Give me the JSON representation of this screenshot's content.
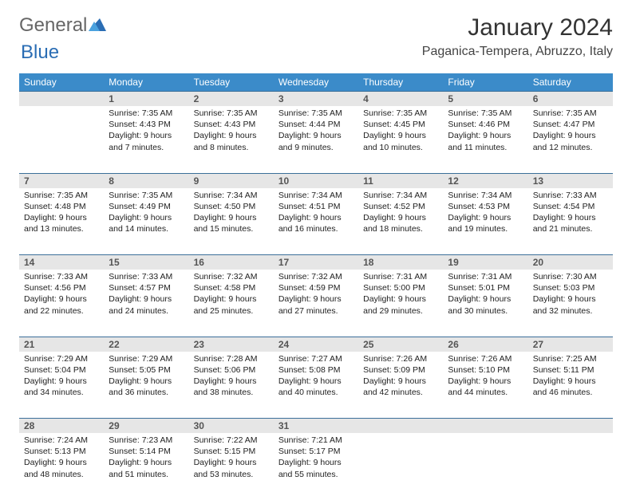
{
  "logo": {
    "part1": "General",
    "part2": "Blue"
  },
  "title": "January 2024",
  "location": "Paganica-Tempera, Abruzzo, Italy",
  "colors": {
    "header_bg": "#3b8bc9",
    "header_text": "#ffffff",
    "daynum_bg": "#e6e6e6",
    "row_border": "#3b6f99",
    "logo_gray": "#666666",
    "logo_blue": "#2a6db4"
  },
  "day_headers": [
    "Sunday",
    "Monday",
    "Tuesday",
    "Wednesday",
    "Thursday",
    "Friday",
    "Saturday"
  ],
  "weeks": [
    [
      null,
      {
        "n": "1",
        "sunrise": "Sunrise: 7:35 AM",
        "sunset": "Sunset: 4:43 PM",
        "day1": "Daylight: 9 hours",
        "day2": "and 7 minutes."
      },
      {
        "n": "2",
        "sunrise": "Sunrise: 7:35 AM",
        "sunset": "Sunset: 4:43 PM",
        "day1": "Daylight: 9 hours",
        "day2": "and 8 minutes."
      },
      {
        "n": "3",
        "sunrise": "Sunrise: 7:35 AM",
        "sunset": "Sunset: 4:44 PM",
        "day1": "Daylight: 9 hours",
        "day2": "and 9 minutes."
      },
      {
        "n": "4",
        "sunrise": "Sunrise: 7:35 AM",
        "sunset": "Sunset: 4:45 PM",
        "day1": "Daylight: 9 hours",
        "day2": "and 10 minutes."
      },
      {
        "n": "5",
        "sunrise": "Sunrise: 7:35 AM",
        "sunset": "Sunset: 4:46 PM",
        "day1": "Daylight: 9 hours",
        "day2": "and 11 minutes."
      },
      {
        "n": "6",
        "sunrise": "Sunrise: 7:35 AM",
        "sunset": "Sunset: 4:47 PM",
        "day1": "Daylight: 9 hours",
        "day2": "and 12 minutes."
      }
    ],
    [
      {
        "n": "7",
        "sunrise": "Sunrise: 7:35 AM",
        "sunset": "Sunset: 4:48 PM",
        "day1": "Daylight: 9 hours",
        "day2": "and 13 minutes."
      },
      {
        "n": "8",
        "sunrise": "Sunrise: 7:35 AM",
        "sunset": "Sunset: 4:49 PM",
        "day1": "Daylight: 9 hours",
        "day2": "and 14 minutes."
      },
      {
        "n": "9",
        "sunrise": "Sunrise: 7:34 AM",
        "sunset": "Sunset: 4:50 PM",
        "day1": "Daylight: 9 hours",
        "day2": "and 15 minutes."
      },
      {
        "n": "10",
        "sunrise": "Sunrise: 7:34 AM",
        "sunset": "Sunset: 4:51 PM",
        "day1": "Daylight: 9 hours",
        "day2": "and 16 minutes."
      },
      {
        "n": "11",
        "sunrise": "Sunrise: 7:34 AM",
        "sunset": "Sunset: 4:52 PM",
        "day1": "Daylight: 9 hours",
        "day2": "and 18 minutes."
      },
      {
        "n": "12",
        "sunrise": "Sunrise: 7:34 AM",
        "sunset": "Sunset: 4:53 PM",
        "day1": "Daylight: 9 hours",
        "day2": "and 19 minutes."
      },
      {
        "n": "13",
        "sunrise": "Sunrise: 7:33 AM",
        "sunset": "Sunset: 4:54 PM",
        "day1": "Daylight: 9 hours",
        "day2": "and 21 minutes."
      }
    ],
    [
      {
        "n": "14",
        "sunrise": "Sunrise: 7:33 AM",
        "sunset": "Sunset: 4:56 PM",
        "day1": "Daylight: 9 hours",
        "day2": "and 22 minutes."
      },
      {
        "n": "15",
        "sunrise": "Sunrise: 7:33 AM",
        "sunset": "Sunset: 4:57 PM",
        "day1": "Daylight: 9 hours",
        "day2": "and 24 minutes."
      },
      {
        "n": "16",
        "sunrise": "Sunrise: 7:32 AM",
        "sunset": "Sunset: 4:58 PM",
        "day1": "Daylight: 9 hours",
        "day2": "and 25 minutes."
      },
      {
        "n": "17",
        "sunrise": "Sunrise: 7:32 AM",
        "sunset": "Sunset: 4:59 PM",
        "day1": "Daylight: 9 hours",
        "day2": "and 27 minutes."
      },
      {
        "n": "18",
        "sunrise": "Sunrise: 7:31 AM",
        "sunset": "Sunset: 5:00 PM",
        "day1": "Daylight: 9 hours",
        "day2": "and 29 minutes."
      },
      {
        "n": "19",
        "sunrise": "Sunrise: 7:31 AM",
        "sunset": "Sunset: 5:01 PM",
        "day1": "Daylight: 9 hours",
        "day2": "and 30 minutes."
      },
      {
        "n": "20",
        "sunrise": "Sunrise: 7:30 AM",
        "sunset": "Sunset: 5:03 PM",
        "day1": "Daylight: 9 hours",
        "day2": "and 32 minutes."
      }
    ],
    [
      {
        "n": "21",
        "sunrise": "Sunrise: 7:29 AM",
        "sunset": "Sunset: 5:04 PM",
        "day1": "Daylight: 9 hours",
        "day2": "and 34 minutes."
      },
      {
        "n": "22",
        "sunrise": "Sunrise: 7:29 AM",
        "sunset": "Sunset: 5:05 PM",
        "day1": "Daylight: 9 hours",
        "day2": "and 36 minutes."
      },
      {
        "n": "23",
        "sunrise": "Sunrise: 7:28 AM",
        "sunset": "Sunset: 5:06 PM",
        "day1": "Daylight: 9 hours",
        "day2": "and 38 minutes."
      },
      {
        "n": "24",
        "sunrise": "Sunrise: 7:27 AM",
        "sunset": "Sunset: 5:08 PM",
        "day1": "Daylight: 9 hours",
        "day2": "and 40 minutes."
      },
      {
        "n": "25",
        "sunrise": "Sunrise: 7:26 AM",
        "sunset": "Sunset: 5:09 PM",
        "day1": "Daylight: 9 hours",
        "day2": "and 42 minutes."
      },
      {
        "n": "26",
        "sunrise": "Sunrise: 7:26 AM",
        "sunset": "Sunset: 5:10 PM",
        "day1": "Daylight: 9 hours",
        "day2": "and 44 minutes."
      },
      {
        "n": "27",
        "sunrise": "Sunrise: 7:25 AM",
        "sunset": "Sunset: 5:11 PM",
        "day1": "Daylight: 9 hours",
        "day2": "and 46 minutes."
      }
    ],
    [
      {
        "n": "28",
        "sunrise": "Sunrise: 7:24 AM",
        "sunset": "Sunset: 5:13 PM",
        "day1": "Daylight: 9 hours",
        "day2": "and 48 minutes."
      },
      {
        "n": "29",
        "sunrise": "Sunrise: 7:23 AM",
        "sunset": "Sunset: 5:14 PM",
        "day1": "Daylight: 9 hours",
        "day2": "and 51 minutes."
      },
      {
        "n": "30",
        "sunrise": "Sunrise: 7:22 AM",
        "sunset": "Sunset: 5:15 PM",
        "day1": "Daylight: 9 hours",
        "day2": "and 53 minutes."
      },
      {
        "n": "31",
        "sunrise": "Sunrise: 7:21 AM",
        "sunset": "Sunset: 5:17 PM",
        "day1": "Daylight: 9 hours",
        "day2": "and 55 minutes."
      },
      null,
      null,
      null
    ]
  ]
}
